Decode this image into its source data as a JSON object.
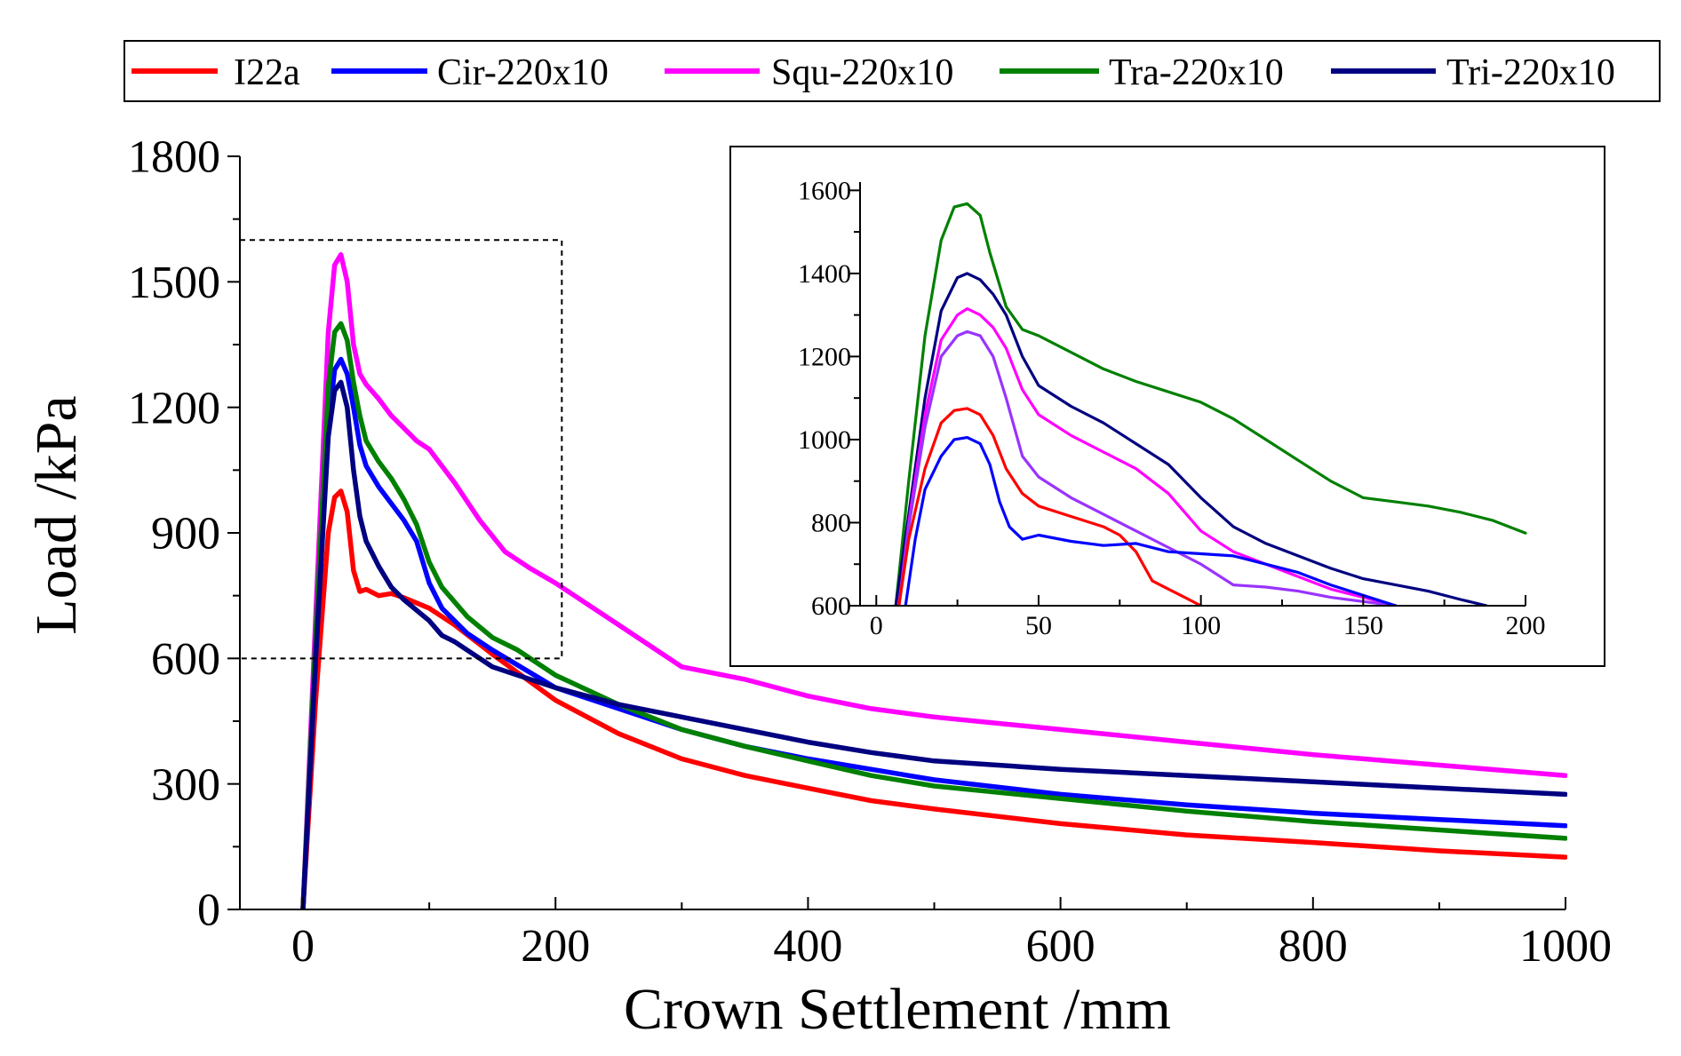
{
  "legend": {
    "entries": [
      {
        "label": "I22a",
        "color": "#ff0000"
      },
      {
        "label": "Cir-220x10",
        "color": "#0000ff"
      },
      {
        "label": "Squ-220x10",
        "color": "#ff00ff"
      },
      {
        "label": "Tra-220x10",
        "color": "#008000"
      },
      {
        "label": "Tri-220x10",
        "color": "#000080"
      }
    ]
  },
  "chart_data": [
    {
      "type": "line",
      "role": "main",
      "xlabel": "Crown Settlement /mm",
      "ylabel": "Load /kPa",
      "xlim": [
        -50,
        1000
      ],
      "ylim": [
        0,
        1800
      ],
      "xticks": [
        0,
        200,
        400,
        600,
        800,
        1000
      ],
      "yticks": [
        0,
        300,
        600,
        900,
        1200,
        1500,
        1800
      ],
      "zoom_region": {
        "x": [
          -50,
          205
        ],
        "y": [
          600,
          1600
        ]
      },
      "grid": false,
      "legend_position": "top",
      "series": [
        {
          "name": "I22a",
          "color": "#ff0000",
          "x": [
            0,
            10,
            20,
            25,
            30,
            35,
            40,
            45,
            50,
            60,
            70,
            80,
            100,
            120,
            150,
            200,
            250,
            300,
            350,
            400,
            450,
            500,
            600,
            700,
            800,
            900,
            1000
          ],
          "y": [
            0,
            500,
            900,
            985,
            1000,
            950,
            810,
            760,
            765,
            750,
            755,
            745,
            720,
            680,
            610,
            500,
            420,
            360,
            320,
            290,
            260,
            240,
            205,
            178,
            160,
            140,
            125
          ]
        },
        {
          "name": "Cir-220x10",
          "color": "#0000ff",
          "x": [
            0,
            10,
            20,
            25,
            30,
            35,
            40,
            45,
            50,
            60,
            70,
            80,
            90,
            100,
            110,
            130,
            150,
            200,
            250,
            300,
            350,
            400,
            500,
            600,
            700,
            800,
            900,
            1000
          ],
          "y": [
            0,
            600,
            1150,
            1290,
            1315,
            1280,
            1200,
            1110,
            1060,
            1010,
            970,
            930,
            880,
            780,
            720,
            660,
            620,
            530,
            480,
            430,
            390,
            360,
            310,
            275,
            250,
            230,
            215,
            200
          ]
        },
        {
          "name": "Squ-220x10",
          "color": "#ff00ff",
          "x": [
            0,
            10,
            20,
            25,
            30,
            35,
            40,
            45,
            50,
            60,
            70,
            80,
            90,
            100,
            120,
            140,
            160,
            180,
            200,
            250,
            300,
            350,
            400,
            450,
            500,
            600,
            700,
            800,
            900,
            1000
          ],
          "y": [
            0,
            700,
            1380,
            1540,
            1565,
            1500,
            1350,
            1280,
            1255,
            1220,
            1180,
            1150,
            1120,
            1100,
            1020,
            930,
            855,
            815,
            780,
            680,
            580,
            550,
            510,
            480,
            460,
            430,
            400,
            370,
            345,
            320
          ]
        },
        {
          "name": "Tra-220x10",
          "color": "#008000",
          "x": [
            0,
            10,
            20,
            25,
            30,
            35,
            40,
            45,
            50,
            60,
            70,
            80,
            90,
            100,
            110,
            130,
            150,
            170,
            200,
            250,
            300,
            350,
            400,
            450,
            500,
            600,
            700,
            800,
            900,
            1000
          ],
          "y": [
            0,
            650,
            1250,
            1380,
            1400,
            1360,
            1260,
            1180,
            1120,
            1070,
            1030,
            980,
            920,
            830,
            770,
            700,
            650,
            620,
            560,
            490,
            430,
            390,
            355,
            320,
            295,
            265,
            235,
            210,
            190,
            170
          ]
        },
        {
          "name": "Tri-220x10",
          "color": "#000080",
          "x": [
            0,
            10,
            20,
            25,
            30,
            35,
            40,
            45,
            50,
            60,
            70,
            80,
            100,
            110,
            120,
            150,
            200,
            250,
            300,
            350,
            400,
            450,
            500,
            600,
            700,
            800,
            900,
            1000
          ],
          "y": [
            0,
            600,
            1130,
            1240,
            1260,
            1200,
            1050,
            940,
            880,
            820,
            770,
            740,
            690,
            655,
            640,
            580,
            530,
            490,
            460,
            430,
            400,
            375,
            355,
            335,
            320,
            305,
            290,
            275
          ]
        }
      ]
    },
    {
      "type": "line",
      "role": "inset",
      "xlim": [
        -5,
        200
      ],
      "ylim": [
        600,
        1620
      ],
      "xticks": [
        0,
        50,
        100,
        150,
        200
      ],
      "yticks": [
        600,
        800,
        1000,
        1200,
        1400,
        1600
      ],
      "grid": false,
      "series": [
        {
          "color": "#008000",
          "x": [
            6,
            10,
            15,
            20,
            24,
            28,
            32,
            35,
            40,
            45,
            50,
            60,
            70,
            80,
            90,
            100,
            110,
            120,
            130,
            140,
            150,
            160,
            170,
            180,
            190,
            200
          ],
          "y": [
            600,
            900,
            1250,
            1480,
            1560,
            1568,
            1540,
            1450,
            1320,
            1265,
            1250,
            1210,
            1170,
            1140,
            1115,
            1090,
            1050,
            1000,
            950,
            900,
            860,
            850,
            840,
            825,
            805,
            775
          ]
        },
        {
          "color": "#000080",
          "x": [
            6,
            10,
            15,
            20,
            25,
            28,
            32,
            36,
            40,
            45,
            50,
            60,
            70,
            80,
            90,
            100,
            110,
            120,
            130,
            140,
            150,
            160,
            170,
            180,
            188
          ],
          "y": [
            600,
            820,
            1100,
            1310,
            1390,
            1400,
            1385,
            1350,
            1300,
            1200,
            1130,
            1080,
            1040,
            990,
            940,
            860,
            790,
            750,
            720,
            690,
            665,
            650,
            635,
            615,
            600
          ]
        },
        {
          "color": "#ff00ff",
          "x": [
            7,
            10,
            15,
            20,
            25,
            28,
            32,
            36,
            40,
            45,
            50,
            60,
            70,
            80,
            90,
            100,
            110,
            120,
            130,
            140,
            150,
            160
          ],
          "y": [
            600,
            800,
            1060,
            1240,
            1300,
            1315,
            1300,
            1270,
            1220,
            1120,
            1060,
            1010,
            970,
            930,
            870,
            780,
            730,
            700,
            670,
            640,
            620,
            600
          ]
        },
        {
          "color": "#9933ff",
          "x": [
            7,
            10,
            15,
            20,
            25,
            28,
            32,
            36,
            40,
            45,
            50,
            60,
            70,
            80,
            90,
            100,
            110,
            120,
            130,
            140,
            150,
            160
          ],
          "y": [
            600,
            790,
            1030,
            1200,
            1250,
            1260,
            1250,
            1200,
            1100,
            960,
            910,
            860,
            820,
            780,
            740,
            700,
            650,
            645,
            635,
            620,
            610,
            600
          ]
        },
        {
          "color": "#ff0000",
          "x": [
            7,
            10,
            15,
            20,
            24,
            28,
            32,
            36,
            40,
            45,
            50,
            60,
            70,
            75,
            80,
            85,
            90,
            95,
            100
          ],
          "y": [
            600,
            760,
            930,
            1040,
            1070,
            1075,
            1060,
            1010,
            930,
            870,
            840,
            815,
            790,
            770,
            730,
            660,
            640,
            620,
            600
          ]
        },
        {
          "color": "#0000ff",
          "x": [
            9,
            12,
            15,
            20,
            24,
            28,
            32,
            35,
            38,
            41,
            45,
            50,
            60,
            70,
            80,
            90,
            100,
            110,
            120,
            130,
            140,
            150,
            160
          ],
          "y": [
            600,
            760,
            880,
            960,
            1000,
            1005,
            990,
            940,
            850,
            790,
            760,
            770,
            755,
            745,
            750,
            730,
            725,
            720,
            700,
            680,
            650,
            625,
            600
          ]
        }
      ]
    }
  ]
}
